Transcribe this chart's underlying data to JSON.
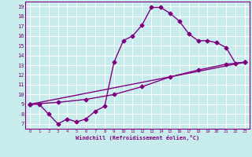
{
  "xlabel": "Windchill (Refroidissement éolien,°C)",
  "bg_color": "#c8ecec",
  "line_color": "#800080",
  "grid_color": "#ffffff",
  "xlim": [
    -0.5,
    23.5
  ],
  "ylim": [
    6.5,
    19.5
  ],
  "xticks": [
    0,
    1,
    2,
    3,
    4,
    5,
    6,
    7,
    8,
    9,
    10,
    11,
    12,
    13,
    14,
    15,
    16,
    17,
    18,
    19,
    20,
    21,
    22,
    23
  ],
  "yticks": [
    7,
    8,
    9,
    10,
    11,
    12,
    13,
    14,
    15,
    16,
    17,
    18,
    19
  ],
  "line1_x": [
    0,
    1,
    2,
    3,
    4,
    5,
    6,
    7,
    8,
    9,
    10,
    11,
    12,
    13,
    14,
    15,
    16,
    17,
    18,
    19,
    20,
    21,
    22,
    23
  ],
  "line1_y": [
    9.0,
    9.0,
    8.0,
    7.0,
    7.5,
    7.2,
    7.5,
    8.3,
    8.8,
    13.3,
    15.5,
    16.0,
    17.1,
    18.9,
    18.9,
    18.3,
    17.5,
    16.2,
    15.5,
    15.5,
    15.3,
    14.8,
    13.2,
    13.3
  ],
  "line2_x": [
    0,
    23
  ],
  "line2_y": [
    9.0,
    13.3
  ],
  "line3_x": [
    0,
    3,
    6,
    9,
    12,
    15,
    18,
    21,
    23
  ],
  "line3_y": [
    9.0,
    9.2,
    9.5,
    10.0,
    10.8,
    11.8,
    12.5,
    13.1,
    13.3
  ],
  "marker": "D",
  "markersize": 2.5,
  "linewidth": 1.0
}
